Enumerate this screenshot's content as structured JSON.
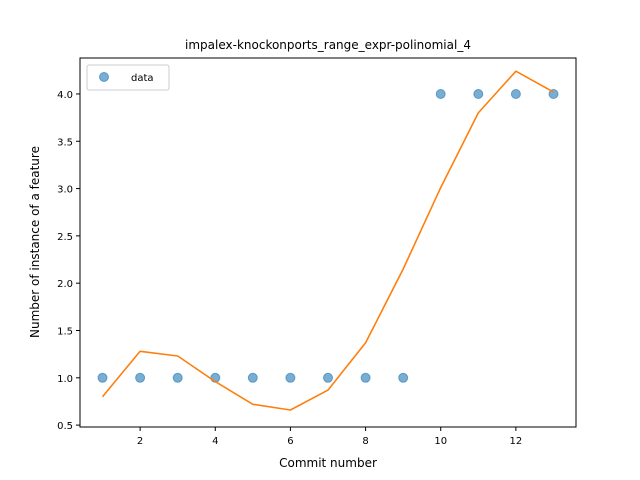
{
  "chart_data": {
    "type": "scatter",
    "title": "impalex-knockonports_range_expr-polinomial_4",
    "xlabel": "Commit number",
    "ylabel": "Number of instance of a feature",
    "xlim": [
      0.4,
      13.6
    ],
    "ylim": [
      0.48,
      4.38
    ],
    "xticks": [
      2,
      4,
      6,
      8,
      10,
      12
    ],
    "yticks": [
      0.5,
      1.0,
      1.5,
      2.0,
      2.5,
      3.0,
      3.5,
      4.0
    ],
    "xtick_labels": [
      "2",
      "4",
      "6",
      "8",
      "10",
      "12"
    ],
    "ytick_labels": [
      "0.5",
      "1.0",
      "1.5",
      "2.0",
      "2.5",
      "3.0",
      "3.5",
      "4.0"
    ],
    "grid": false,
    "legend_position": "upper-left",
    "legend": {
      "label": "data"
    },
    "series": [
      {
        "name": "data",
        "kind": "scatter",
        "color": "#1f77b4",
        "x": [
          1,
          2,
          3,
          4,
          5,
          6,
          7,
          8,
          9,
          10,
          11,
          12,
          13
        ],
        "y": [
          1,
          1,
          1,
          1,
          1,
          1,
          1,
          1,
          1,
          4,
          4,
          4,
          4
        ]
      },
      {
        "kind": "line",
        "color": "#ff7f0e",
        "x": [
          1,
          2,
          3,
          4,
          5,
          6,
          7,
          8,
          9,
          10,
          11,
          12,
          13
        ],
        "y": [
          0.8,
          1.28,
          1.23,
          0.96,
          0.72,
          0.66,
          0.87,
          1.37,
          2.15,
          3.01,
          3.8,
          4.24,
          4.02
        ]
      }
    ]
  }
}
